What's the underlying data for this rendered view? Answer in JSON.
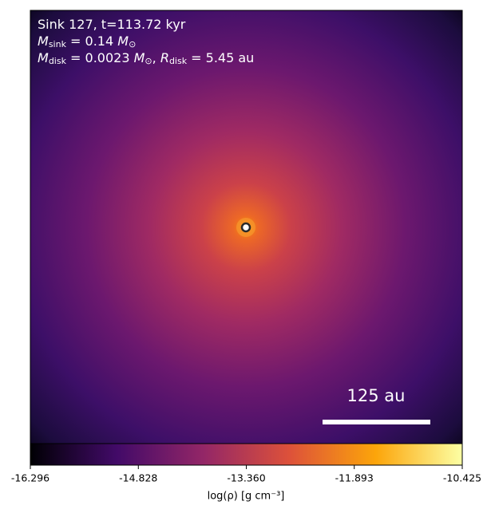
{
  "chart_data": {
    "type": "image",
    "annotations": [
      [
        {
          "text": "Sink 127, t=113.72 kyr"
        }
      ],
      [
        {
          "text": "M",
          "italic": true
        },
        {
          "text": "sink",
          "sub": true
        },
        {
          "text": " = 0.14 "
        },
        {
          "text": "M",
          "italic": true
        },
        {
          "text": "⊙",
          "sub": true
        }
      ],
      [
        {
          "text": "M",
          "italic": true
        },
        {
          "text": "disk",
          "sub": true
        },
        {
          "text": " = 0.0023 "
        },
        {
          "text": "M",
          "italic": true
        },
        {
          "text": "⊙",
          "sub": true
        },
        {
          "text": ", "
        },
        {
          "text": "R",
          "italic": true
        },
        {
          "text": "disk",
          "sub": true
        },
        {
          "text": " = 5.45 au"
        }
      ]
    ],
    "scale_bar": {
      "label": "125 au"
    },
    "colorbar": {
      "label": "log(ρ) [g cm⁻³]",
      "lim": [
        -16.296,
        -10.425
      ],
      "ticks": [
        -16.296,
        -14.828,
        {
          "value": -13.36,
          "label": "-13.360"
        },
        -11.893,
        -10.425
      ],
      "colormap": [
        "#000004",
        "#420a68",
        "#932667",
        "#dd513a",
        "#fca50a",
        "#fcffa4"
      ]
    }
  }
}
